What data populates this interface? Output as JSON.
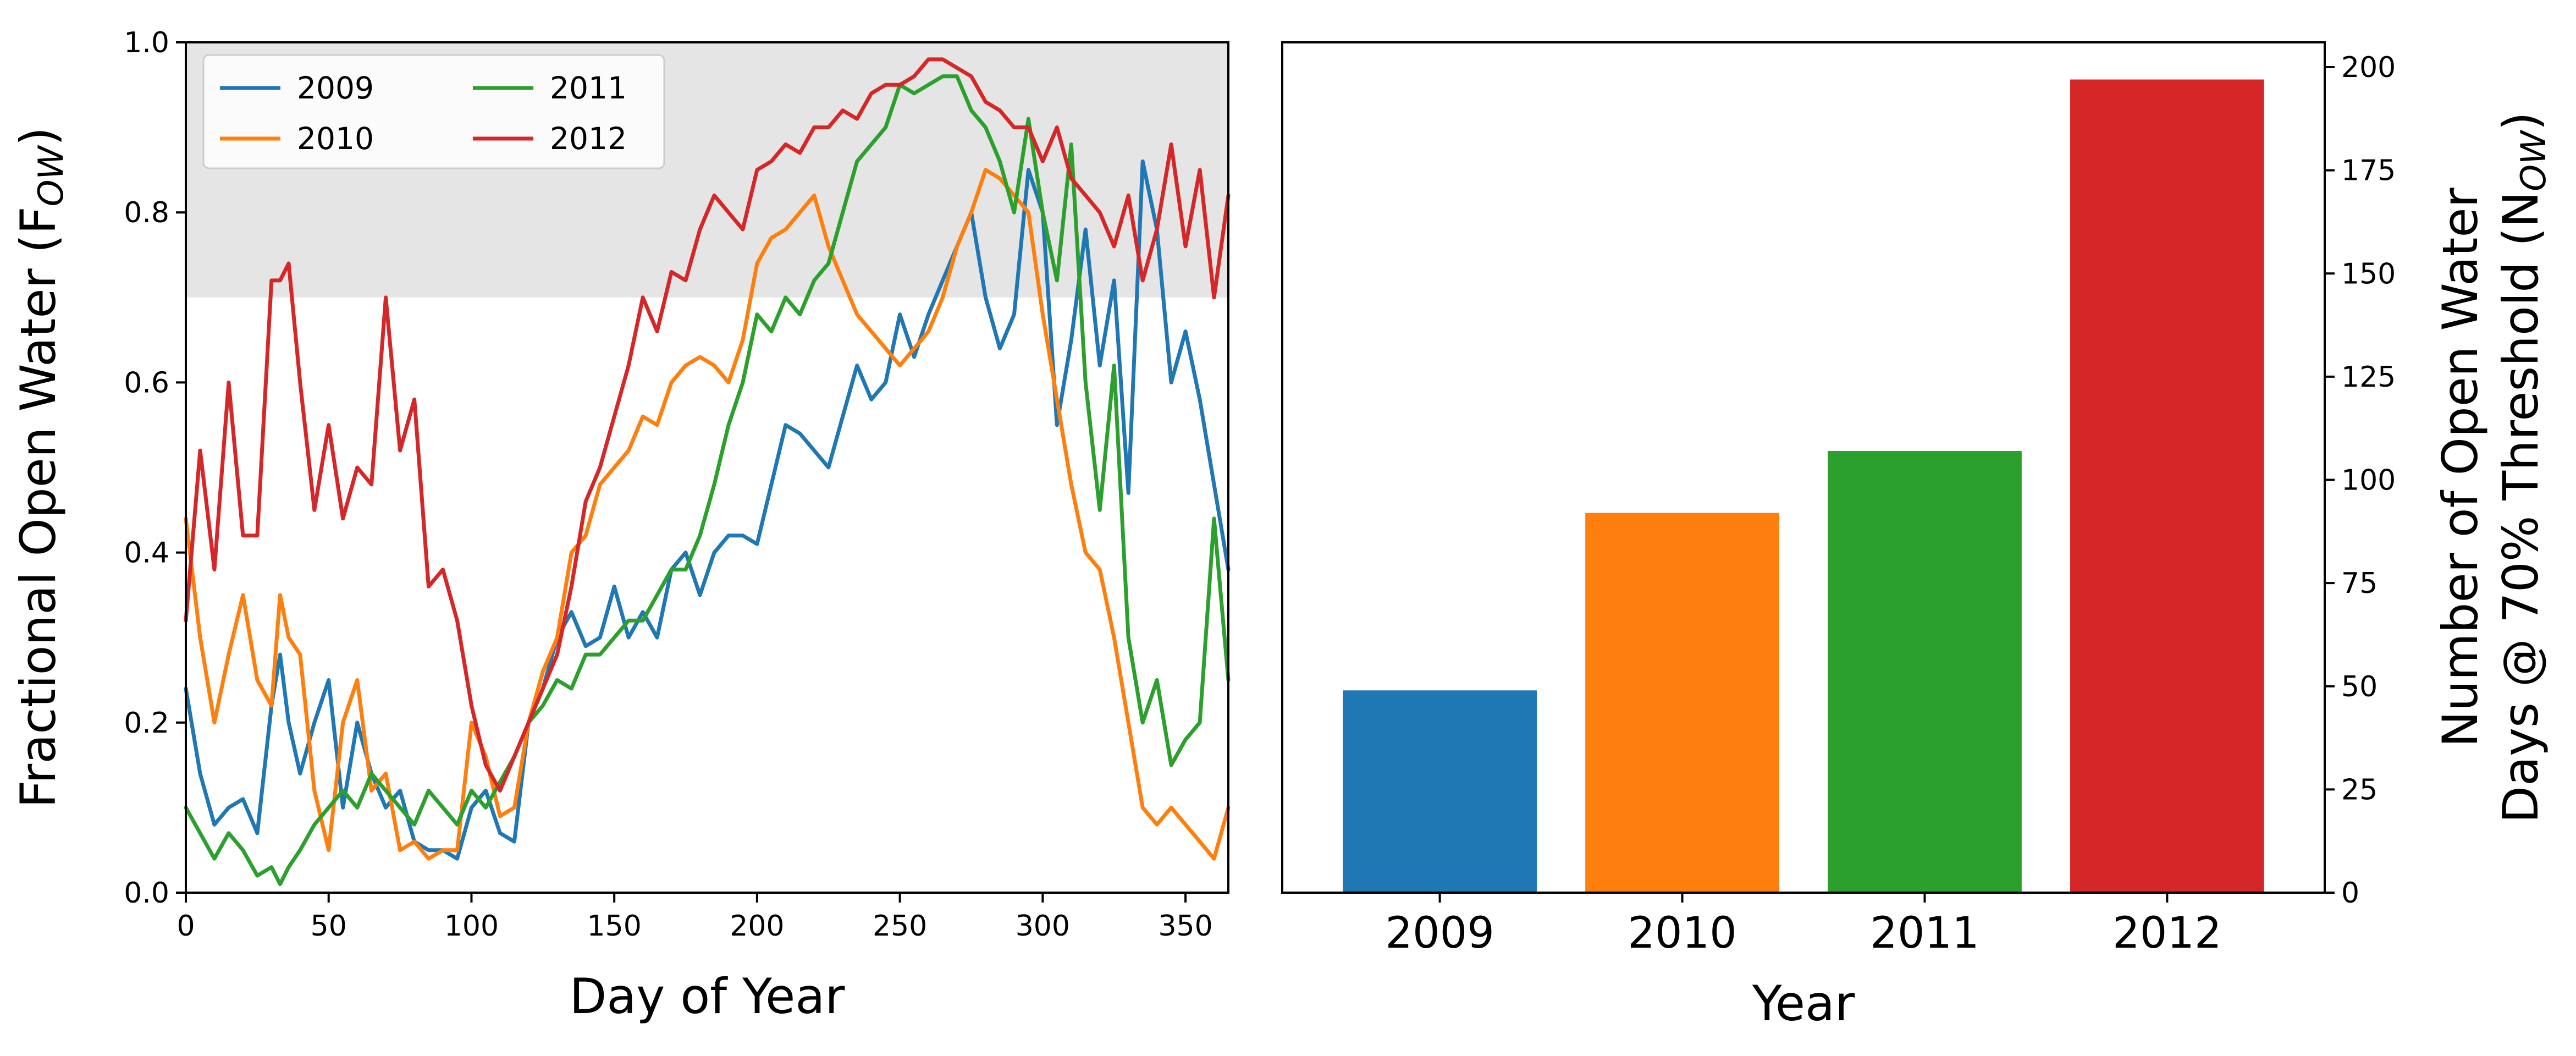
{
  "chart_data": [
    {
      "type": "line",
      "xlabel": "Day of Year",
      "ylabel_main": "Fractional Open Water (F",
      "ylabel_sub": "OW",
      "ylabel_close": ")",
      "xlim": [
        0,
        365
      ],
      "ylim": [
        0,
        1.0
      ],
      "xticks": [
        0,
        50,
        100,
        150,
        200,
        250,
        300,
        350
      ],
      "yticks": [
        0.0,
        0.2,
        0.4,
        0.6,
        0.8,
        1.0
      ],
      "shaded_band": [
        0.7,
        1.0
      ],
      "legend_position": "top-left",
      "legend_columns": 2,
      "series": [
        {
          "name": "2009",
          "color": "#1f77b4",
          "x": [
            0,
            5,
            10,
            15,
            20,
            25,
            30,
            33,
            36,
            40,
            45,
            50,
            55,
            60,
            65,
            70,
            75,
            80,
            85,
            90,
            95,
            100,
            105,
            110,
            115,
            120,
            125,
            130,
            135,
            140,
            145,
            150,
            155,
            160,
            165,
            170,
            175,
            180,
            185,
            190,
            195,
            200,
            205,
            210,
            215,
            220,
            225,
            230,
            235,
            240,
            245,
            250,
            255,
            260,
            265,
            270,
            275,
            280,
            285,
            290,
            295,
            300,
            305,
            310,
            315,
            320,
            325,
            330,
            335,
            340,
            345,
            350,
            355,
            360,
            365
          ],
          "y": [
            0.24,
            0.14,
            0.08,
            0.1,
            0.11,
            0.07,
            0.22,
            0.28,
            0.2,
            0.14,
            0.2,
            0.25,
            0.1,
            0.2,
            0.14,
            0.1,
            0.12,
            0.06,
            0.05,
            0.05,
            0.04,
            0.1,
            0.12,
            0.07,
            0.06,
            0.2,
            0.24,
            0.3,
            0.33,
            0.29,
            0.3,
            0.36,
            0.3,
            0.33,
            0.3,
            0.38,
            0.4,
            0.35,
            0.4,
            0.42,
            0.42,
            0.41,
            0.48,
            0.55,
            0.54,
            0.52,
            0.5,
            0.56,
            0.62,
            0.58,
            0.6,
            0.68,
            0.63,
            0.68,
            0.72,
            0.76,
            0.8,
            0.7,
            0.64,
            0.68,
            0.85,
            0.8,
            0.55,
            0.65,
            0.78,
            0.62,
            0.72,
            0.47,
            0.86,
            0.78,
            0.6,
            0.66,
            0.58,
            0.48,
            0.38
          ]
        },
        {
          "name": "2010",
          "color": "#ff7f0e",
          "x": [
            0,
            5,
            10,
            15,
            20,
            25,
            30,
            33,
            36,
            40,
            45,
            50,
            55,
            60,
            65,
            70,
            75,
            80,
            85,
            90,
            95,
            100,
            105,
            110,
            115,
            120,
            125,
            130,
            135,
            140,
            145,
            150,
            155,
            160,
            165,
            170,
            175,
            180,
            185,
            190,
            195,
            200,
            205,
            210,
            215,
            220,
            225,
            230,
            235,
            240,
            245,
            250,
            255,
            260,
            265,
            270,
            275,
            280,
            285,
            290,
            295,
            300,
            305,
            310,
            315,
            320,
            325,
            330,
            335,
            340,
            345,
            350,
            355,
            360,
            365
          ],
          "y": [
            0.44,
            0.3,
            0.2,
            0.28,
            0.35,
            0.25,
            0.22,
            0.35,
            0.3,
            0.28,
            0.12,
            0.05,
            0.2,
            0.25,
            0.12,
            0.14,
            0.05,
            0.06,
            0.04,
            0.05,
            0.05,
            0.2,
            0.16,
            0.09,
            0.1,
            0.2,
            0.26,
            0.3,
            0.4,
            0.42,
            0.48,
            0.5,
            0.52,
            0.56,
            0.55,
            0.6,
            0.62,
            0.63,
            0.62,
            0.6,
            0.65,
            0.74,
            0.77,
            0.78,
            0.8,
            0.82,
            0.76,
            0.72,
            0.68,
            0.66,
            0.64,
            0.62,
            0.64,
            0.66,
            0.7,
            0.76,
            0.8,
            0.85,
            0.84,
            0.82,
            0.8,
            0.68,
            0.58,
            0.48,
            0.4,
            0.38,
            0.3,
            0.2,
            0.1,
            0.08,
            0.1,
            0.08,
            0.06,
            0.04,
            0.1
          ]
        },
        {
          "name": "2011",
          "color": "#2ca02c",
          "x": [
            0,
            5,
            10,
            15,
            20,
            25,
            30,
            33,
            36,
            40,
            45,
            50,
            55,
            60,
            65,
            70,
            75,
            80,
            85,
            90,
            95,
            100,
            105,
            110,
            115,
            120,
            125,
            130,
            135,
            140,
            145,
            150,
            155,
            160,
            165,
            170,
            175,
            180,
            185,
            190,
            195,
            200,
            205,
            210,
            215,
            220,
            225,
            230,
            235,
            240,
            245,
            250,
            255,
            260,
            265,
            270,
            275,
            280,
            285,
            290,
            295,
            300,
            305,
            310,
            315,
            320,
            325,
            330,
            335,
            340,
            345,
            350,
            355,
            360,
            365
          ],
          "y": [
            0.1,
            0.07,
            0.04,
            0.07,
            0.05,
            0.02,
            0.03,
            0.01,
            0.03,
            0.05,
            0.08,
            0.1,
            0.12,
            0.1,
            0.14,
            0.12,
            0.1,
            0.08,
            0.12,
            0.1,
            0.08,
            0.12,
            0.1,
            0.13,
            0.16,
            0.2,
            0.22,
            0.25,
            0.24,
            0.28,
            0.28,
            0.3,
            0.32,
            0.32,
            0.35,
            0.38,
            0.38,
            0.42,
            0.48,
            0.55,
            0.6,
            0.68,
            0.66,
            0.7,
            0.68,
            0.72,
            0.74,
            0.8,
            0.86,
            0.88,
            0.9,
            0.95,
            0.94,
            0.95,
            0.96,
            0.96,
            0.92,
            0.9,
            0.86,
            0.8,
            0.91,
            0.8,
            0.72,
            0.88,
            0.6,
            0.45,
            0.62,
            0.3,
            0.2,
            0.25,
            0.15,
            0.18,
            0.2,
            0.44,
            0.25
          ]
        },
        {
          "name": "2012",
          "color": "#d62728",
          "x": [
            0,
            5,
            10,
            15,
            20,
            25,
            30,
            33,
            36,
            40,
            45,
            50,
            55,
            60,
            65,
            70,
            75,
            80,
            85,
            90,
            95,
            100,
            105,
            110,
            115,
            120,
            125,
            130,
            135,
            140,
            145,
            150,
            155,
            160,
            165,
            170,
            175,
            180,
            185,
            190,
            195,
            200,
            205,
            210,
            215,
            220,
            225,
            230,
            235,
            240,
            245,
            250,
            255,
            260,
            265,
            270,
            275,
            280,
            285,
            290,
            295,
            300,
            305,
            310,
            315,
            320,
            325,
            330,
            335,
            340,
            345,
            350,
            355,
            360,
            365
          ],
          "y": [
            0.32,
            0.52,
            0.38,
            0.6,
            0.42,
            0.42,
            0.72,
            0.72,
            0.74,
            0.6,
            0.45,
            0.55,
            0.44,
            0.5,
            0.48,
            0.7,
            0.52,
            0.58,
            0.36,
            0.38,
            0.32,
            0.22,
            0.15,
            0.12,
            0.16,
            0.2,
            0.24,
            0.28,
            0.36,
            0.46,
            0.5,
            0.56,
            0.62,
            0.7,
            0.66,
            0.73,
            0.72,
            0.78,
            0.82,
            0.8,
            0.78,
            0.85,
            0.86,
            0.88,
            0.87,
            0.9,
            0.9,
            0.92,
            0.91,
            0.94,
            0.95,
            0.95,
            0.96,
            0.98,
            0.98,
            0.97,
            0.96,
            0.93,
            0.92,
            0.9,
            0.9,
            0.86,
            0.9,
            0.84,
            0.82,
            0.8,
            0.76,
            0.82,
            0.72,
            0.78,
            0.88,
            0.76,
            0.85,
            0.7,
            0.82
          ]
        }
      ]
    },
    {
      "type": "bar",
      "categories": [
        "2009",
        "2010",
        "2011",
        "2012"
      ],
      "values": [
        49,
        92,
        107,
        197
      ],
      "colors": [
        "#1f77b4",
        "#ff7f0e",
        "#2ca02c",
        "#d62728"
      ],
      "xlabel": "Year",
      "ylabel_line1": "Number of Open Water",
      "ylabel_line2_main": "Days @ 70% Threshold (N",
      "ylabel_line2_sub": "OW",
      "ylabel_line2_close": ")",
      "ylim": [
        0,
        206
      ],
      "yticks": [
        0,
        25,
        50,
        75,
        100,
        125,
        150,
        175,
        200
      ],
      "yaxis_side": "right"
    }
  ]
}
